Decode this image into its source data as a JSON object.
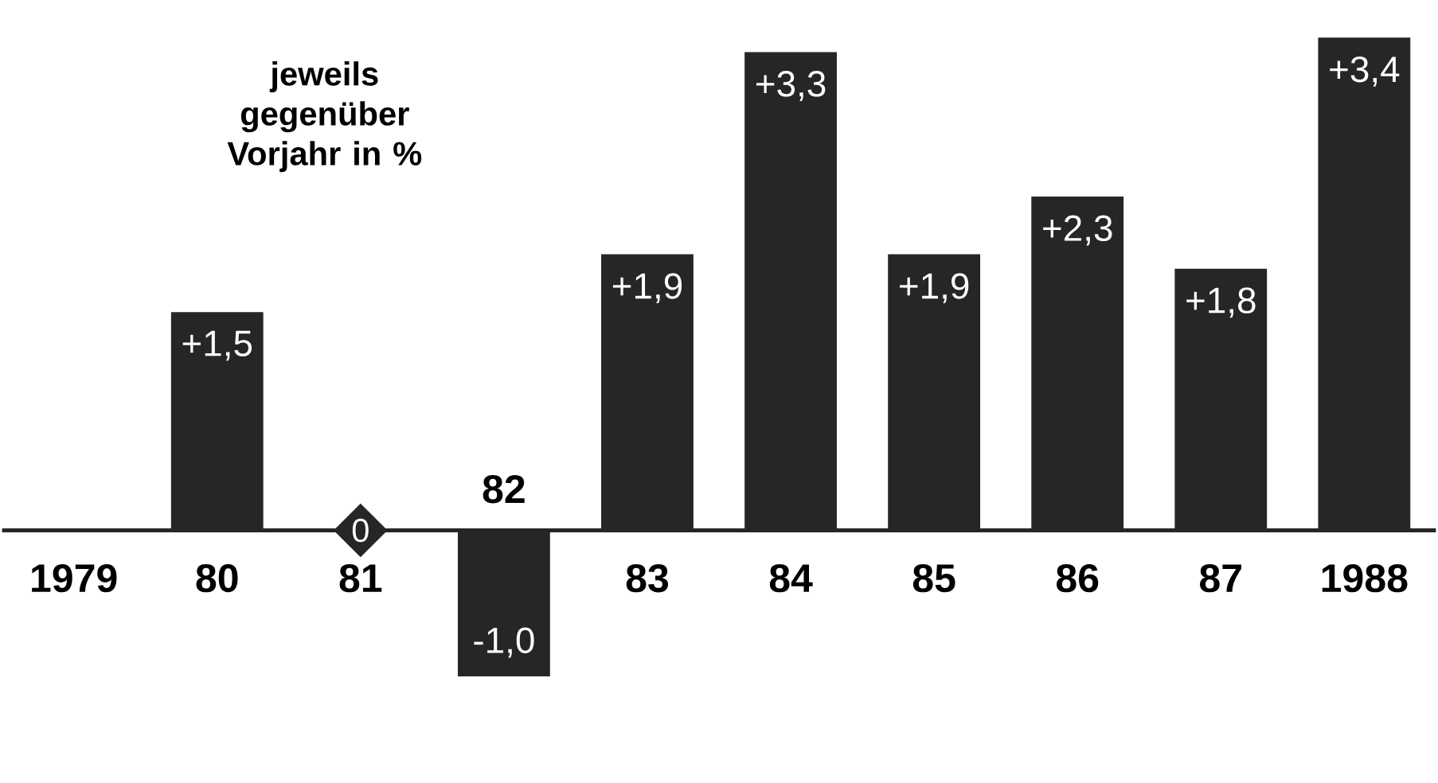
{
  "chart_data": {
    "type": "bar",
    "categories": [
      "1979",
      "80",
      "81",
      "82",
      "83",
      "84",
      "85",
      "86",
      "87",
      "1988"
    ],
    "values": [
      null,
      1.5,
      0,
      -1.0,
      1.9,
      3.3,
      1.9,
      2.3,
      1.8,
      3.4
    ],
    "value_labels": [
      null,
      "+1,5",
      "0",
      "-1,0",
      "+1,9",
      "+3,3",
      "+1,9",
      "+2,3",
      "+1,8",
      "+3,4"
    ],
    "color": "#262626",
    "annotations": [
      "jeweils gegenüber Vorjahr in %"
    ]
  }
}
